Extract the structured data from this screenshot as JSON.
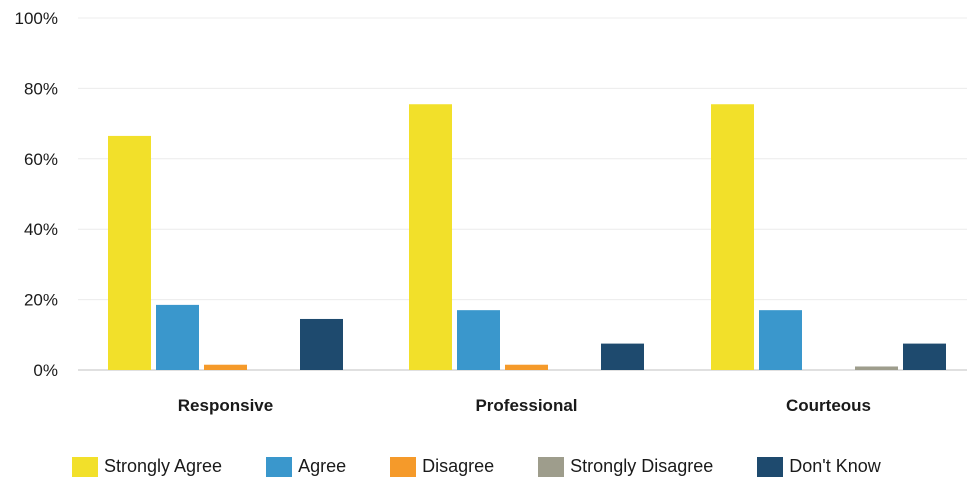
{
  "chart_data": {
    "type": "bar",
    "categories": [
      "Responsive",
      "Professional",
      "Courteous"
    ],
    "series": [
      {
        "name": "Strongly Agree",
        "color": "#F2E02A",
        "values": [
          66.5,
          75.5,
          75.5
        ]
      },
      {
        "name": "Agree",
        "color": "#3A97CC",
        "values": [
          18.5,
          17,
          17
        ]
      },
      {
        "name": "Disagree",
        "color": "#F59A2A",
        "values": [
          1.5,
          1.5,
          0
        ]
      },
      {
        "name": "Strongly Disagree",
        "color": "#9E9D8C",
        "values": [
          0,
          0,
          1
        ]
      },
      {
        "name": "Don't Know",
        "color": "#1E4A6E",
        "values": [
          14.5,
          7.5,
          7.5
        ]
      }
    ],
    "yticks": [
      "0%",
      "20%",
      "40%",
      "60%",
      "80%",
      "100%"
    ],
    "ylim": [
      0,
      100
    ],
    "grid": true,
    "legend_position": "bottom"
  }
}
